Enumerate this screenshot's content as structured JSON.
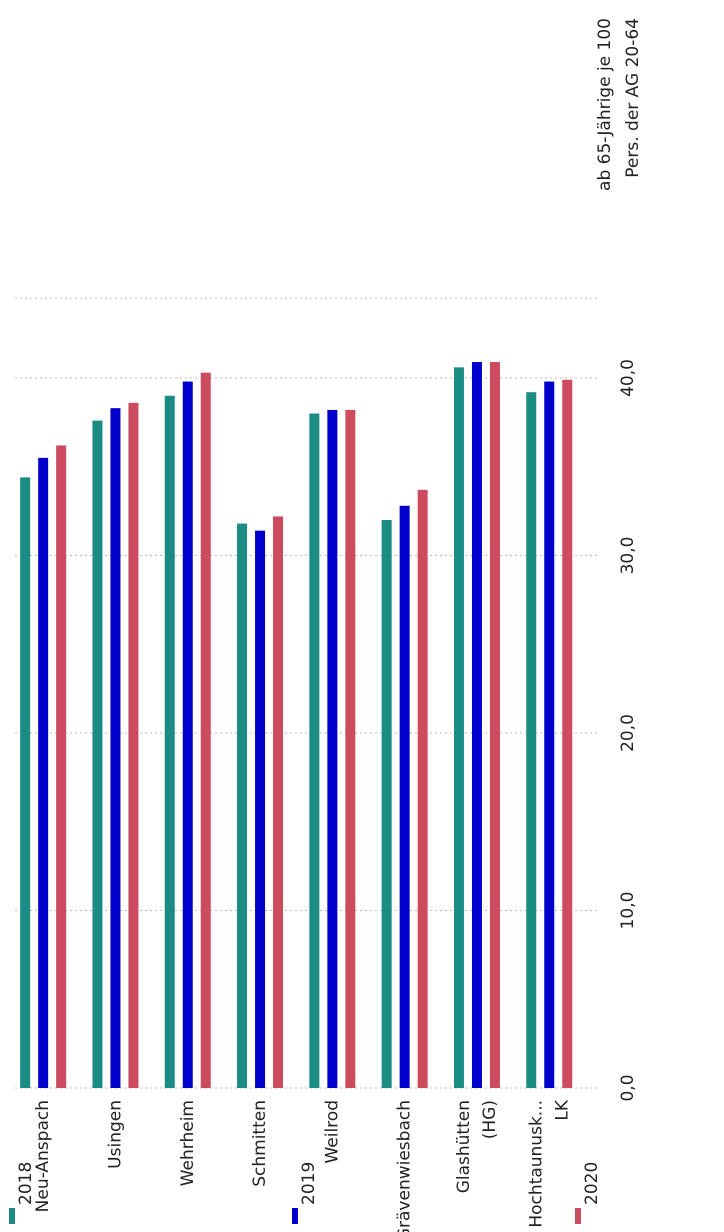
{
  "chart_data": {
    "type": "bar",
    "title": [
      "ab 65-Jährige je 100",
      "Pers. der AG 20-64"
    ],
    "categories": [
      [
        "Neu-Anspach"
      ],
      [
        "Usingen"
      ],
      [
        "Wehrheim"
      ],
      [
        "Schmitten"
      ],
      [
        "Weilrod"
      ],
      [
        "Grävenwiesbach"
      ],
      [
        "Glashütten",
        "(HG)"
      ],
      [
        "Hochtaunusk...",
        "LK"
      ]
    ],
    "series": [
      {
        "name": "2018",
        "color": "#1a8c84",
        "values": [
          34.4,
          37.6,
          39.0,
          31.8,
          38.0,
          32.0,
          40.6,
          39.2
        ]
      },
      {
        "name": "2019",
        "color": "#0000cc",
        "values": [
          35.5,
          38.3,
          39.8,
          31.4,
          38.2,
          32.8,
          40.9,
          39.8
        ]
      },
      {
        "name": "2020",
        "color": "#cc4b5e",
        "values": [
          36.2,
          38.6,
          40.3,
          32.2,
          38.2,
          33.7,
          40.9,
          39.9
        ]
      }
    ],
    "ylim": [
      0,
      44.5
    ],
    "yticks": [
      {
        "value": 0,
        "label": "0,0"
      },
      {
        "value": 10,
        "label": "10,0"
      },
      {
        "value": 20,
        "label": "20,0"
      },
      {
        "value": 30,
        "label": "30,0"
      },
      {
        "value": 40,
        "label": "40,0"
      }
    ],
    "grid": true
  }
}
